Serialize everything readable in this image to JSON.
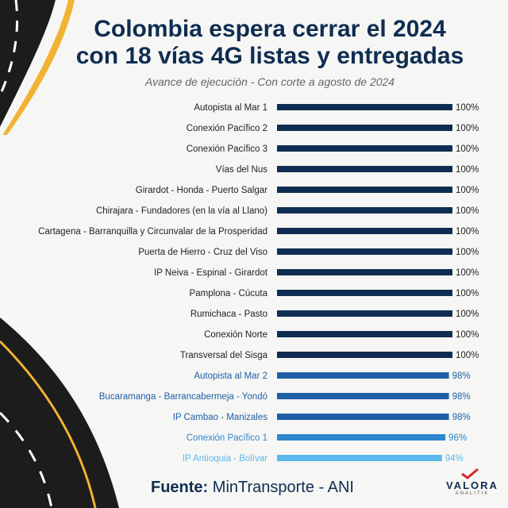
{
  "header": {
    "title_line1": "Colombia espera cerrar el 2024",
    "title_line2": "con 18 vías 4G listas y entregadas",
    "subtitle": "Avance de ejecución - Con corte a agosto de 2024"
  },
  "footer": {
    "source_label": "Fuente:",
    "source_value": "MinTransporte - ANI",
    "brand_name": "VALORA",
    "brand_sub": "ANALITIK"
  },
  "colors": {
    "navy": "#0f2d52",
    "blue": "#1f5fa8",
    "mid_blue": "#2f86d0",
    "light_blue": "#5ab8ec",
    "road": "#1c1c1c",
    "road_line_yellow": "#f2b233"
  },
  "chart_data": {
    "type": "bar",
    "orientation": "horizontal",
    "title": "Colombia espera cerrar el 2024 con 18 vías 4G listas y entregadas",
    "subtitle": "Avance de ejecución - Con corte a agosto de 2024",
    "unit": "%",
    "xlim": [
      0,
      100
    ],
    "categories": [
      "Autopista al Mar 1",
      "Conexión Pacífico 2",
      "Conexión Pacífico 3",
      "Vías del Nus",
      "Girardot - Honda - Puerto Salgar",
      "Chirajara - Fundadores (en la vía al Llano)",
      "Cartagena - Barranquilla y Circunvalar de la Prosperidad",
      "Puerta de Hierro - Cruz del Viso",
      "IP Neiva - Espinal - Girardot",
      "Pamplona - Cúcuta",
      "Rumichaca - Pasto",
      "Conexión Norte",
      "Transversal del Sisga",
      "Autopista al Mar 2",
      "Bucaramanga - Barrancabermeja - Yondó",
      "IP Cambao - Manizales",
      "Conexión Pacífico 1",
      "IP Antioquia - Bolívar"
    ],
    "values": [
      100,
      100,
      100,
      100,
      100,
      100,
      100,
      100,
      100,
      100,
      100,
      100,
      100,
      98,
      98,
      98,
      96,
      94
    ],
    "value_labels": [
      "100%",
      "100%",
      "100%",
      "100%",
      "100%",
      "100%",
      "100%",
      "100%",
      "100%",
      "100%",
      "100%",
      "100%",
      "100%",
      "98%",
      "98%",
      "98%",
      "96%",
      "94%"
    ],
    "bar_colors": [
      "#0f2d52",
      "#0f2d52",
      "#0f2d52",
      "#0f2d52",
      "#0f2d52",
      "#0f2d52",
      "#0f2d52",
      "#0f2d52",
      "#0f2d52",
      "#0f2d52",
      "#0f2d52",
      "#0f2d52",
      "#0f2d52",
      "#1f5fa8",
      "#1f5fa8",
      "#1f5fa8",
      "#2f86d0",
      "#5ab8ec"
    ],
    "label_colors": [
      "#222222",
      "#222222",
      "#222222",
      "#222222",
      "#222222",
      "#222222",
      "#222222",
      "#222222",
      "#222222",
      "#222222",
      "#222222",
      "#222222",
      "#222222",
      "#1f5fa8",
      "#1f5fa8",
      "#1f5fa8",
      "#2f86d0",
      "#5ab8ec"
    ],
    "grid": false,
    "legend": "none"
  }
}
